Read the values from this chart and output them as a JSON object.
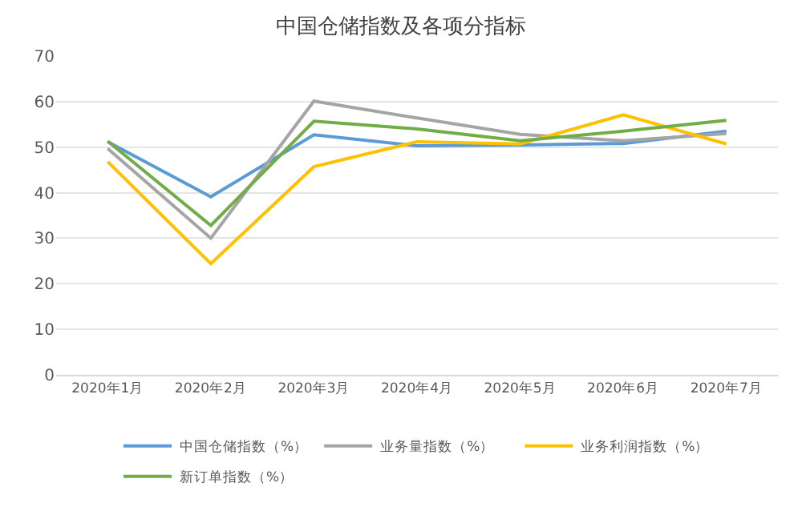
{
  "chart_data": {
    "type": "line",
    "title": "中国仓储指数及各项分指标",
    "categories": [
      "2020年1月",
      "2020年2月",
      "2020年3月",
      "2020年4月",
      "2020年5月",
      "2020年6月",
      "2020年7月"
    ],
    "series": [
      {
        "name": "中国仓储指数（%）",
        "color": "#5b9bd5",
        "values": [
          51.2,
          39.1,
          52.7,
          50.3,
          50.5,
          50.8,
          53.5
        ]
      },
      {
        "name": "业务量指数（%）",
        "color": "#a5a5a5",
        "values": [
          49.7,
          30.0,
          60.1,
          56.4,
          52.8,
          51.4,
          53.0
        ]
      },
      {
        "name": "业务利润指数（%）",
        "color": "#ffc000",
        "values": [
          46.8,
          24.4,
          45.7,
          51.2,
          50.7,
          57.1,
          50.7
        ]
      },
      {
        "name": "新订单指数（%）",
        "color": "#70ad47",
        "values": [
          51.3,
          32.8,
          55.7,
          54.0,
          51.4,
          53.5,
          55.9
        ]
      }
    ],
    "ylim": [
      0,
      70
    ],
    "yticks": [
      0,
      10,
      20,
      30,
      40,
      50,
      60,
      70
    ],
    "grid": "y",
    "legend": "bottom",
    "marker": "none",
    "line_style": "solid"
  }
}
